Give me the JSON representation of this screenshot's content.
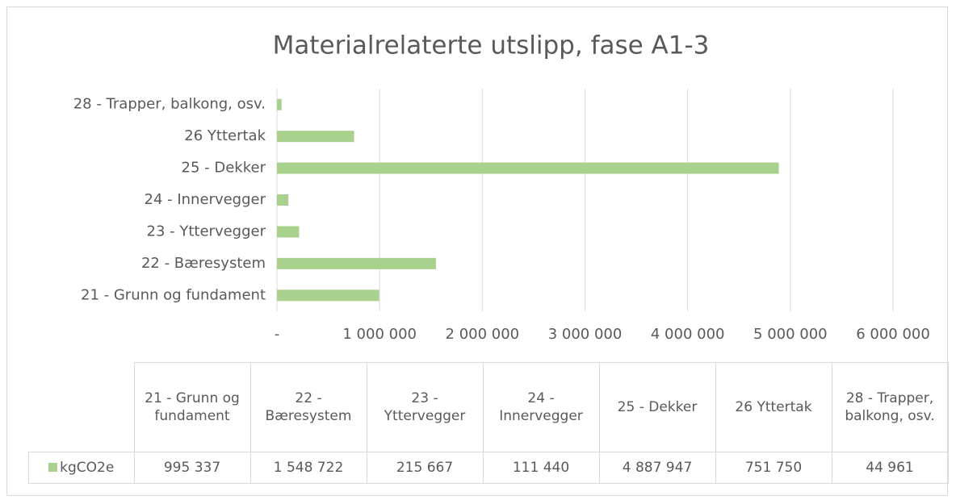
{
  "chart_data": {
    "type": "bar",
    "orientation": "horizontal",
    "title": "Materialrelaterte utslipp, fase A1-3",
    "categories": [
      "21 - Grunn og fundament",
      "22 - Bæresystem",
      "23 - Yttervegger",
      "24 - Innervegger",
      "25 - Dekker",
      "26 Yttertak",
      "28 - Trapper, balkong, osv."
    ],
    "series": [
      {
        "name": "kgCO2e",
        "color": "#a9d18e",
        "values": [
          995337,
          1548722,
          215667,
          111440,
          4887947,
          751750,
          44961
        ],
        "value_labels": [
          "995 337",
          "1 548 722",
          "215 667",
          "111 440",
          "4 887 947",
          "751 750",
          "44 961"
        ]
      }
    ],
    "xlim": [
      0,
      6000000
    ],
    "xticks": [
      {
        "value": 0,
        "label": "-"
      },
      {
        "value": 1000000,
        "label": "1 000 000"
      },
      {
        "value": 2000000,
        "label": "2 000 000"
      },
      {
        "value": 3000000,
        "label": "3 000 000"
      },
      {
        "value": 4000000,
        "label": "4 000 000"
      },
      {
        "value": 5000000,
        "label": "5 000 000"
      },
      {
        "value": 6000000,
        "label": "6 000 000"
      }
    ],
    "grid": true,
    "data_table": true
  }
}
